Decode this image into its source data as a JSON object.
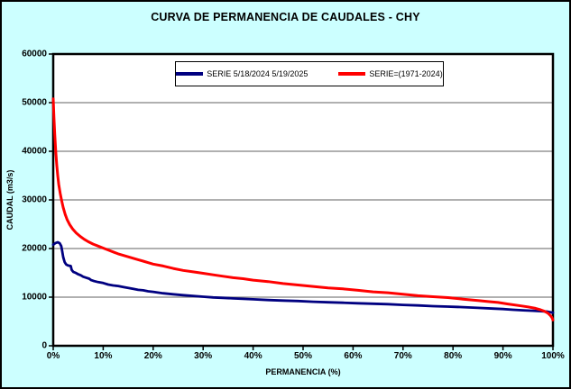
{
  "chart_data": {
    "type": "line",
    "title": "CURVA DE PERMANENCIA DE CAUDALES - CHY",
    "xlabel": "PERMANENCIA (%)",
    "ylabel": "CAUDAL (m3/s)",
    "xlim": [
      0,
      100
    ],
    "ylim": [
      0,
      60000
    ],
    "x_tick_labels": [
      "0%",
      "10%",
      "20%",
      "30%",
      "40%",
      "50%",
      "60%",
      "70%",
      "80%",
      "90%",
      "100%"
    ],
    "y_tick_values": [
      0,
      10000,
      20000,
      30000,
      40000,
      50000,
      60000
    ],
    "grid": "horizontal-only",
    "legend_position": "top-center-boxed",
    "outer_bg": "#CCFFFF",
    "plot_bg": "#FFFFFF",
    "gridline_color": "#808080",
    "axis_color": "#000000",
    "series": [
      {
        "name": "SERIE 5/18/2024 5/19/2025",
        "color": "#000080",
        "width": 2.8,
        "points": [
          [
            0,
            20800
          ],
          [
            0.4,
            21100
          ],
          [
            0.9,
            21300
          ],
          [
            1.3,
            21100
          ],
          [
            1.6,
            20500
          ],
          [
            1.8,
            19400
          ],
          [
            2.0,
            18200
          ],
          [
            2.3,
            17200
          ],
          [
            2.6,
            16700
          ],
          [
            3.0,
            16500
          ],
          [
            3.5,
            16400
          ],
          [
            3.7,
            15600
          ],
          [
            4.0,
            15200
          ],
          [
            4.5,
            15000
          ],
          [
            5.0,
            14700
          ],
          [
            5.5,
            14500
          ],
          [
            6.0,
            14200
          ],
          [
            6.6,
            14000
          ],
          [
            7.2,
            13800
          ],
          [
            7.6,
            13500
          ],
          [
            8.2,
            13300
          ],
          [
            9.0,
            13100
          ],
          [
            10,
            12900
          ],
          [
            11,
            12600
          ],
          [
            12,
            12400
          ],
          [
            13,
            12300
          ],
          [
            14,
            12100
          ],
          [
            15,
            11900
          ],
          [
            16,
            11700
          ],
          [
            17,
            11500
          ],
          [
            18,
            11400
          ],
          [
            19,
            11200
          ],
          [
            20,
            11100
          ],
          [
            22,
            10800
          ],
          [
            24,
            10600
          ],
          [
            26,
            10400
          ],
          [
            28,
            10250
          ],
          [
            30,
            10100
          ],
          [
            32,
            9950
          ],
          [
            34,
            9850
          ],
          [
            36,
            9750
          ],
          [
            38,
            9650
          ],
          [
            40,
            9550
          ],
          [
            43,
            9400
          ],
          [
            46,
            9300
          ],
          [
            49,
            9200
          ],
          [
            52,
            9050
          ],
          [
            55,
            8950
          ],
          [
            58,
            8850
          ],
          [
            61,
            8750
          ],
          [
            64,
            8650
          ],
          [
            67,
            8550
          ],
          [
            70,
            8400
          ],
          [
            73,
            8300
          ],
          [
            76,
            8150
          ],
          [
            79,
            8050
          ],
          [
            82,
            7950
          ],
          [
            85,
            7800
          ],
          [
            88,
            7650
          ],
          [
            90,
            7550
          ],
          [
            92,
            7400
          ],
          [
            94,
            7300
          ],
          [
            96,
            7200
          ],
          [
            98,
            7100
          ],
          [
            99,
            7000
          ],
          [
            100,
            6800
          ]
        ]
      },
      {
        "name": "SERIE=(1971-2024)",
        "color": "#FF0000",
        "width": 3,
        "points": [
          [
            0,
            50800
          ],
          [
            0.15,
            47000
          ],
          [
            0.3,
            43500
          ],
          [
            0.5,
            40000
          ],
          [
            0.7,
            37200
          ],
          [
            0.9,
            35000
          ],
          [
            1.1,
            33200
          ],
          [
            1.4,
            31300
          ],
          [
            1.7,
            29800
          ],
          [
            2.0,
            28400
          ],
          [
            2.4,
            27000
          ],
          [
            2.8,
            25900
          ],
          [
            3.3,
            24900
          ],
          [
            3.9,
            24000
          ],
          [
            4.6,
            23200
          ],
          [
            5.4,
            22500
          ],
          [
            6.2,
            21900
          ],
          [
            7.0,
            21400
          ],
          [
            8.0,
            20900
          ],
          [
            9.0,
            20500
          ],
          [
            10,
            20100
          ],
          [
            11,
            19700
          ],
          [
            12,
            19300
          ],
          [
            13,
            18900
          ],
          [
            14,
            18600
          ],
          [
            15,
            18300
          ],
          [
            16,
            18000
          ],
          [
            17,
            17700
          ],
          [
            18,
            17400
          ],
          [
            19,
            17100
          ],
          [
            20,
            16800
          ],
          [
            22,
            16400
          ],
          [
            24,
            15900
          ],
          [
            26,
            15500
          ],
          [
            28,
            15200
          ],
          [
            30,
            14900
          ],
          [
            32,
            14600
          ],
          [
            34,
            14300
          ],
          [
            36,
            14000
          ],
          [
            38,
            13800
          ],
          [
            40,
            13500
          ],
          [
            43,
            13200
          ],
          [
            46,
            12800
          ],
          [
            49,
            12500
          ],
          [
            52,
            12200
          ],
          [
            55,
            11900
          ],
          [
            58,
            11700
          ],
          [
            61,
            11400
          ],
          [
            64,
            11100
          ],
          [
            67,
            10900
          ],
          [
            70,
            10600
          ],
          [
            73,
            10300
          ],
          [
            76,
            10100
          ],
          [
            79,
            9900
          ],
          [
            82,
            9600
          ],
          [
            85,
            9300
          ],
          [
            87,
            9100
          ],
          [
            89,
            8900
          ],
          [
            91,
            8600
          ],
          [
            93,
            8300
          ],
          [
            95,
            8000
          ],
          [
            96.5,
            7700
          ],
          [
            97.5,
            7400
          ],
          [
            98.3,
            7100
          ],
          [
            99,
            6700
          ],
          [
            99.5,
            6200
          ],
          [
            99.8,
            5800
          ],
          [
            100,
            5300
          ]
        ]
      }
    ]
  }
}
